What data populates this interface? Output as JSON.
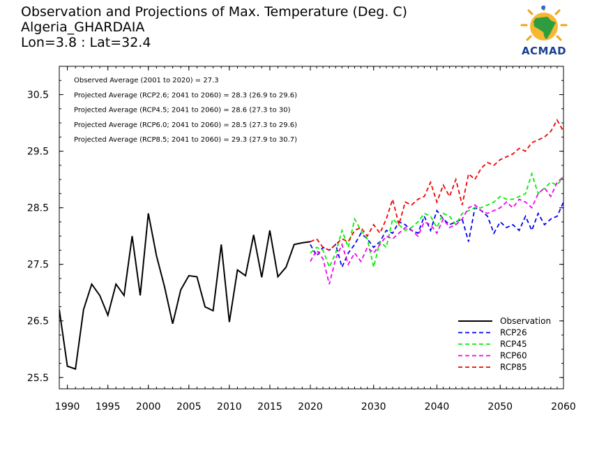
{
  "header": {
    "title_line1": "Observation and Projections of Max. Temperature (Deg. C)",
    "title_line2": "Algeria_GHARDAIA",
    "title_line3": "Lon=3.8 : Lat=32.4"
  },
  "logo": {
    "text": "ACMAD",
    "icon": "africa-sun-logo-icon"
  },
  "chart_data": {
    "type": "line",
    "xlim": [
      1989,
      2060
    ],
    "ylim": [
      25.3,
      31.0
    ],
    "x_ticks": [
      1990,
      1995,
      2000,
      2005,
      2010,
      2015,
      2020,
      2030,
      2040,
      2050,
      2060
    ],
    "y_ticks": [
      25.5,
      26.5,
      27.5,
      28.5,
      29.5,
      30.5
    ],
    "annotations": [
      "Observed Average (2001 to 2020) = 27.3",
      "Projected Average (RCP2.6; 2041 to 2060) = 28.3 (26.9 to 29.6)",
      "Projected Average (RCP4.5; 2041 to 2060) = 28.6 (27.3 to 30)",
      "Projected Average (RCP6.0; 2041 to 2060) = 28.5 (27.3 to 29.6)",
      "Projected Average (RCP8.5; 2041 to 2060) = 29.3 (27.9 to 30.7)"
    ],
    "legend_position": "bottom-right",
    "series": [
      {
        "name": "Observation",
        "color": "#000000",
        "dashed": false,
        "x": [
          1989,
          1990,
          1991,
          1992,
          1993,
          1994,
          1995,
          1996,
          1997,
          1998,
          1999,
          2000,
          2001,
          2002,
          2003,
          2004,
          2005,
          2006,
          2007,
          2008,
          2009,
          2010,
          2011,
          2012,
          2013,
          2014,
          2015,
          2016,
          2017,
          2018,
          2019,
          2020
        ],
        "y": [
          26.7,
          25.7,
          25.65,
          26.7,
          27.15,
          26.95,
          26.6,
          27.15,
          26.95,
          28.0,
          26.95,
          28.4,
          27.65,
          27.1,
          26.45,
          27.05,
          27.3,
          27.28,
          26.75,
          26.68,
          27.85,
          26.48,
          27.4,
          27.3,
          28.02,
          27.27,
          28.1,
          27.28,
          27.45,
          27.85,
          27.88,
          27.9
        ]
      },
      {
        "name": "RCP26",
        "color": "#0000ee",
        "dashed": true,
        "x": [
          2020,
          2021,
          2022,
          2023,
          2024,
          2025,
          2026,
          2027,
          2028,
          2029,
          2030,
          2031,
          2032,
          2033,
          2034,
          2035,
          2036,
          2037,
          2038,
          2039,
          2040,
          2041,
          2042,
          2043,
          2044,
          2045,
          2046,
          2047,
          2048,
          2049,
          2050,
          2051,
          2052,
          2053,
          2054,
          2055,
          2056,
          2057,
          2058,
          2059,
          2060
        ],
        "y": [
          27.85,
          27.65,
          27.8,
          27.75,
          27.85,
          27.45,
          27.7,
          27.85,
          28.05,
          27.95,
          27.8,
          27.9,
          28.1,
          28.05,
          28.25,
          28.2,
          28.1,
          28.05,
          28.35,
          28.1,
          28.45,
          28.3,
          28.2,
          28.25,
          28.3,
          27.9,
          28.5,
          28.45,
          28.35,
          28.05,
          28.25,
          28.15,
          28.2,
          28.1,
          28.35,
          28.1,
          28.4,
          28.2,
          28.3,
          28.35,
          28.6
        ]
      },
      {
        "name": "RCP45",
        "color": "#00ee00",
        "dashed": true,
        "x": [
          2020,
          2021,
          2022,
          2023,
          2024,
          2025,
          2026,
          2027,
          2028,
          2029,
          2030,
          2031,
          2032,
          2033,
          2034,
          2035,
          2036,
          2037,
          2038,
          2039,
          2040,
          2041,
          2042,
          2043,
          2044,
          2045,
          2046,
          2047,
          2048,
          2049,
          2050,
          2051,
          2052,
          2053,
          2054,
          2055,
          2056,
          2057,
          2058,
          2059,
          2060
        ],
        "y": [
          27.7,
          27.8,
          27.75,
          27.45,
          27.7,
          28.1,
          27.8,
          28.3,
          28.1,
          27.95,
          27.45,
          27.9,
          27.8,
          28.3,
          28.2,
          28.1,
          28.15,
          28.25,
          28.4,
          28.35,
          28.15,
          28.4,
          28.35,
          28.2,
          28.4,
          28.45,
          28.5,
          28.5,
          28.55,
          28.6,
          28.7,
          28.65,
          28.65,
          28.7,
          28.75,
          29.1,
          28.75,
          28.85,
          28.95,
          28.9,
          29.05
        ]
      },
      {
        "name": "RCP60",
        "color": "#ee00ee",
        "dashed": true,
        "x": [
          2020,
          2021,
          2022,
          2023,
          2024,
          2025,
          2026,
          2027,
          2028,
          2029,
          2030,
          2031,
          2032,
          2033,
          2034,
          2035,
          2036,
          2037,
          2038,
          2039,
          2040,
          2041,
          2042,
          2043,
          2044,
          2045,
          2046,
          2047,
          2048,
          2049,
          2050,
          2051,
          2052,
          2053,
          2054,
          2055,
          2056,
          2057,
          2058,
          2059,
          2060
        ],
        "y": [
          27.55,
          27.75,
          27.6,
          27.15,
          27.6,
          27.85,
          27.5,
          27.7,
          27.55,
          27.8,
          27.7,
          27.85,
          28.0,
          27.95,
          28.05,
          28.15,
          28.1,
          28.0,
          28.25,
          28.2,
          28.05,
          28.3,
          28.15,
          28.2,
          28.3,
          28.5,
          28.55,
          28.45,
          28.4,
          28.45,
          28.5,
          28.6,
          28.5,
          28.65,
          28.6,
          28.5,
          28.75,
          28.85,
          28.7,
          28.95,
          29.05
        ]
      },
      {
        "name": "RCP85",
        "color": "#ee0000",
        "dashed": true,
        "x": [
          2020,
          2021,
          2022,
          2023,
          2024,
          2025,
          2026,
          2027,
          2028,
          2029,
          2030,
          2031,
          2032,
          2033,
          2034,
          2035,
          2036,
          2037,
          2038,
          2039,
          2040,
          2041,
          2042,
          2043,
          2044,
          2045,
          2046,
          2047,
          2048,
          2049,
          2050,
          2051,
          2052,
          2053,
          2054,
          2055,
          2056,
          2057,
          2058,
          2059,
          2060
        ],
        "y": [
          27.9,
          27.95,
          27.8,
          27.75,
          27.85,
          27.95,
          27.9,
          28.1,
          28.15,
          28.0,
          28.2,
          28.05,
          28.3,
          28.65,
          28.2,
          28.6,
          28.55,
          28.65,
          28.7,
          28.95,
          28.6,
          28.9,
          28.7,
          29.0,
          28.55,
          29.1,
          29.0,
          29.2,
          29.3,
          29.25,
          29.35,
          29.4,
          29.45,
          29.55,
          29.5,
          29.65,
          29.7,
          29.75,
          29.85,
          30.05,
          29.85
        ]
      }
    ]
  }
}
